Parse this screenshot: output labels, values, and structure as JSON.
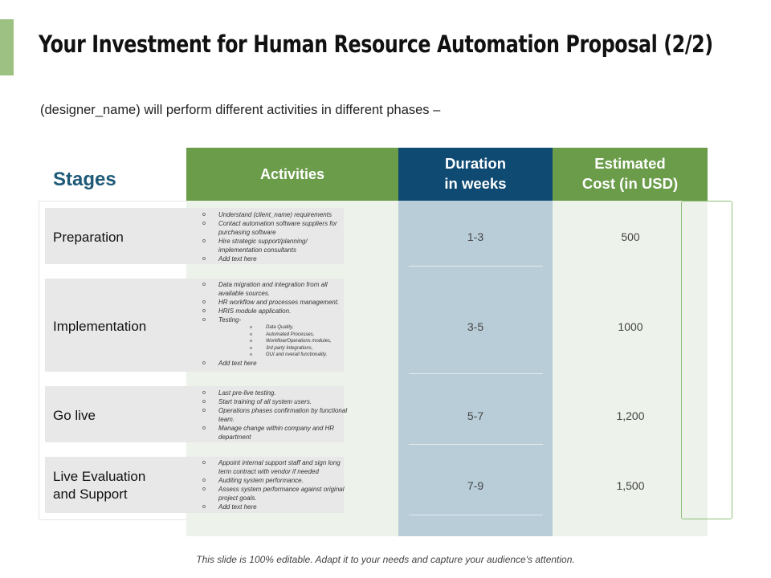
{
  "title": "Your Investment for Human Resource Automation Proposal (2/2)",
  "subtitle": "(designer_name) will perform different activities in different phases –",
  "stages_label": "Stages",
  "headers": {
    "activities": "Activities",
    "duration_line1": "Duration",
    "duration_line2": "in weeks",
    "cost_line1": "Estimated",
    "cost_line2": "Cost (in USD)"
  },
  "rows": [
    {
      "stage_line1": "Preparation",
      "stage_line2": "",
      "duration": "1-3",
      "cost": "500",
      "activities": [
        "Understand (client_name) requirements",
        "Contact automation software suppliers for purchasing software",
        "Hire strategic support/planning/ implementation consultants",
        "Add text here"
      ]
    },
    {
      "stage_line1": "Implementation",
      "stage_line2": "",
      "duration": "3-5",
      "cost": "1000",
      "activities": [
        "Data migration and integration from all available sources.",
        "HR workflow and processes management.",
        "HRIS module application.",
        "Testing-",
        "Add text here"
      ],
      "testing_sub": [
        "Data Quality,",
        "Automated Processes,",
        "Workflow/Operations modules,",
        "3rd party Integrations,",
        "GUI and overall functionality."
      ]
    },
    {
      "stage_line1": "Go live",
      "stage_line2": "",
      "duration": "5-7",
      "cost": "1,200",
      "activities": [
        "Last pre-live testing.",
        "Start training of all system users.",
        "Operations phases confirmation by functional team.",
        "Manage change within company and HR department"
      ]
    },
    {
      "stage_line1": "Live Evaluation",
      "stage_line2": "and Support",
      "duration": "7-9",
      "cost": "1,500",
      "activities": [
        "Appoint internal support staff and sign long term contract with vendor if needed",
        "Auditing system performance.",
        "Assess system performance against original project goals.",
        "Add text here"
      ]
    }
  ],
  "footer": "This slide is 100% editable. Adapt it to your needs and capture your audience's attention.",
  "colors": {
    "green_header": "#6a9c4a",
    "blue_header": "#0f4a73",
    "stages_text": "#1e5a78",
    "duration_column": "#b9cdd8",
    "accent_bar": "#9dc183"
  }
}
